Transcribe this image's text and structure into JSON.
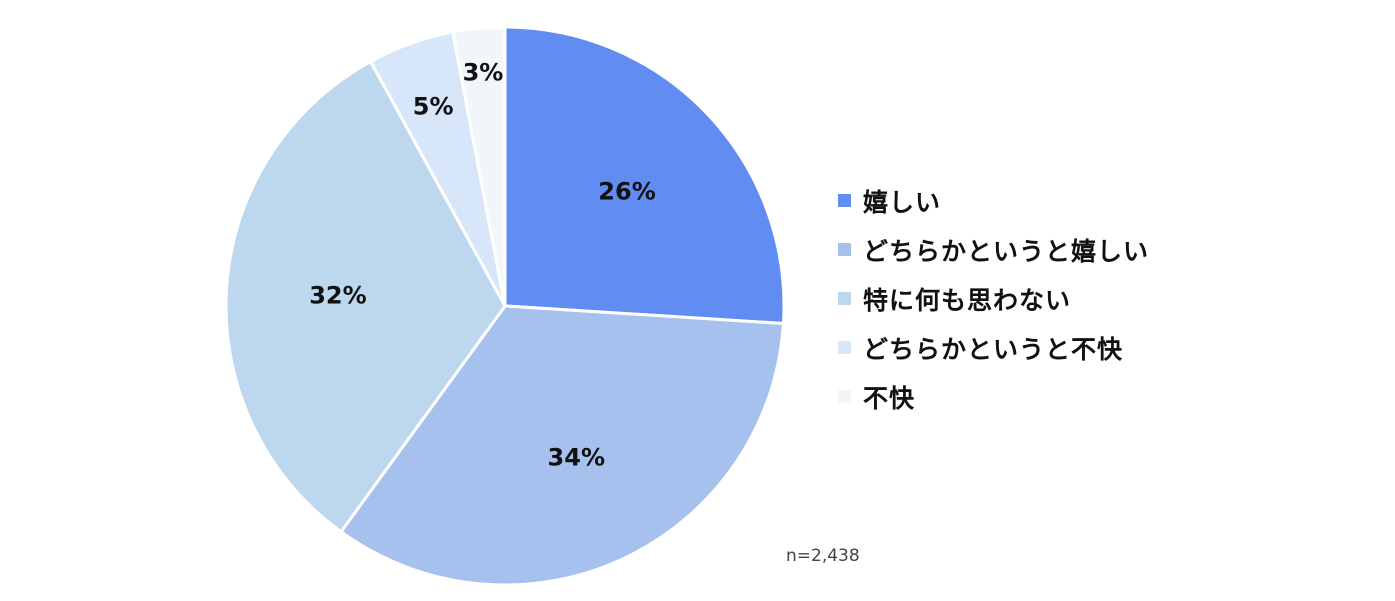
{
  "chart_data": {
    "type": "pie",
    "start": "top",
    "direction": "clockwise",
    "slices": [
      {
        "label": "嬉しい",
        "value": 26,
        "display": "26%",
        "color": "#618CF2"
      },
      {
        "label": "どちらかというと嬉しい",
        "value": 34,
        "display": "34%",
        "color": "#A7C1EE"
      },
      {
        "label": "特に何も思わない",
        "value": 32,
        "display": "32%",
        "color": "#BDD7EE"
      },
      {
        "label": "どちらかというと不快",
        "value": 5,
        "display": "5%",
        "color": "#D8E6FA"
      },
      {
        "label": "不快",
        "value": 3,
        "display": "3%",
        "color": "#F1F6FB"
      }
    ],
    "legend_position": "right",
    "annotation": "n=2,438"
  }
}
